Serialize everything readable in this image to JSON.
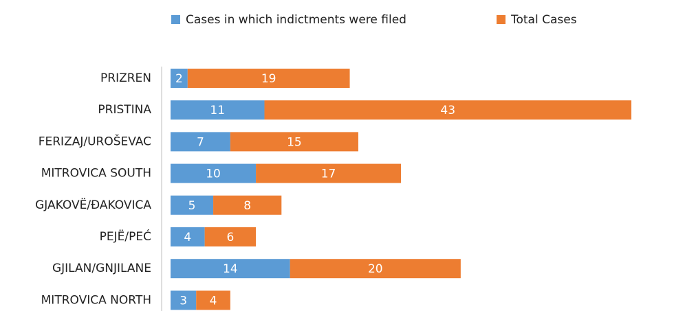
{
  "chart_data": {
    "type": "stacked-bar-horizontal",
    "categories": [
      "PRIZREN",
      "PRISTINA",
      "FERIZAJ/UROŠEVAC",
      "MITROVICA SOUTH",
      "GJAKOVË/ĐAKOVICA",
      "PEJË/PEĆ",
      "GJILAN/GNJILANE",
      "MITROVICA NORTH"
    ],
    "series": [
      {
        "name": "Cases in which indictments were filed",
        "color": "#5b9bd5",
        "values": [
          2,
          11,
          7,
          10,
          5,
          4,
          14,
          3
        ]
      },
      {
        "name": "Total Cases",
        "color": "#ed7d31",
        "values": [
          19,
          43,
          15,
          17,
          8,
          6,
          20,
          4
        ]
      }
    ]
  }
}
